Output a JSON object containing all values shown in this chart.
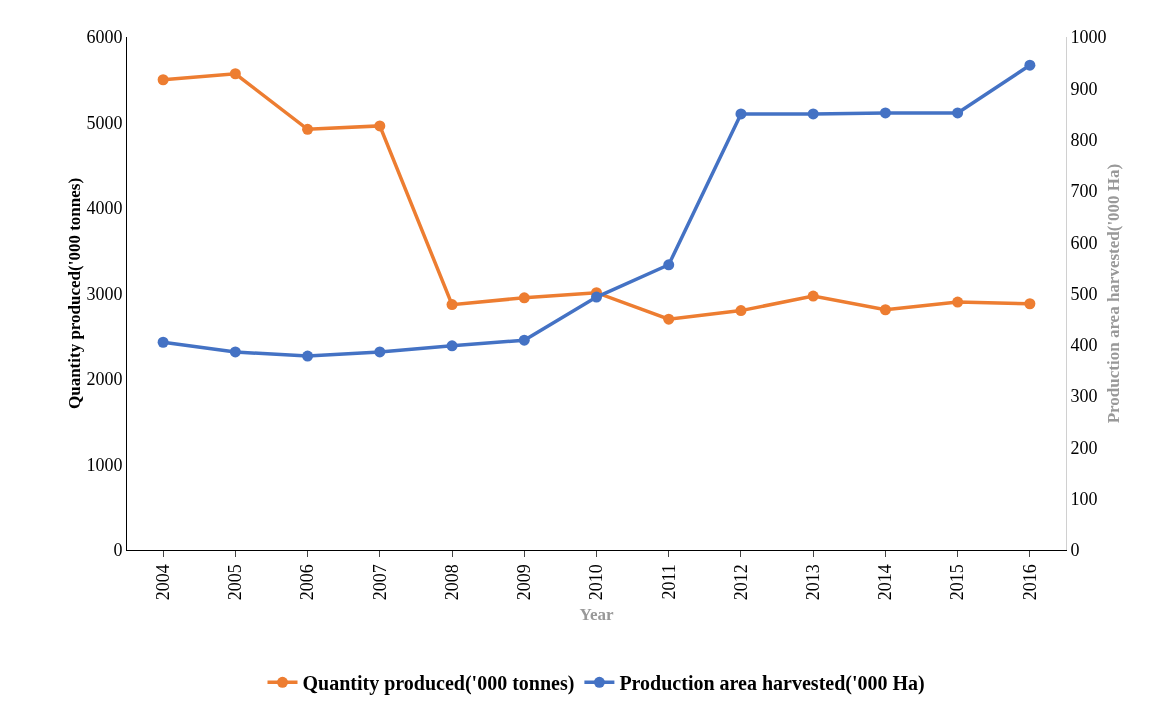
{
  "chart_data": {
    "type": "line",
    "xlabel": "Year",
    "ylabel": "Quantity produced('000 tonnes)",
    "y2label": "Production area harvested('000 Ha)",
    "categories": [
      "2004",
      "2005",
      "2006",
      "2007",
      "2008",
      "2009",
      "2010",
      "2011",
      "2012",
      "2013",
      "2014",
      "2015",
      "2016"
    ],
    "series": [
      {
        "name": "Quantity produced('000 tonnes)",
        "color": "#ed7d31",
        "values": [
          5500,
          5570,
          4920,
          4960,
          2870,
          2950,
          3010,
          2700,
          2800,
          2970,
          2810,
          2900,
          2880
        ]
      },
      {
        "name": "Production area harvested('000 Ha)",
        "color": "#4472c4",
        "axis": "y2",
        "values": [
          405,
          386,
          378,
          386,
          398,
          409,
          493,
          556,
          850,
          850,
          852,
          852,
          945
        ]
      }
    ],
    "ylim": [
      0,
      6000
    ],
    "yticks": [
      0,
      1000,
      2000,
      3000,
      4000,
      5000,
      6000
    ],
    "y2lim": [
      0,
      1000
    ],
    "y2ticks": [
      0,
      100,
      200,
      300,
      400,
      500,
      600,
      700,
      800,
      900,
      1000
    ],
    "grid": false,
    "legend": "bottom",
    "marker": "circle",
    "line_style": "solid"
  }
}
